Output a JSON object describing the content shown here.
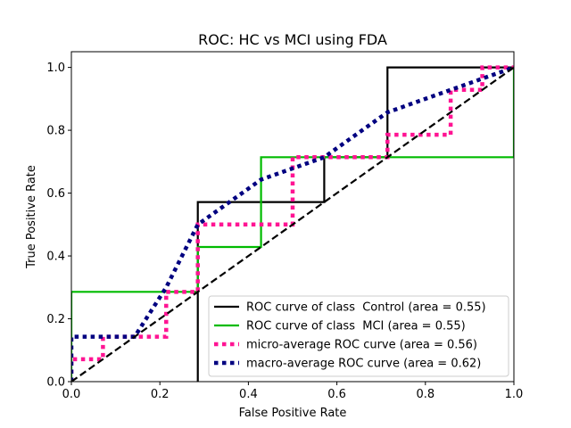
{
  "chart_data": {
    "type": "line",
    "title": "ROC: HC vs MCI using FDA",
    "xlabel": "False Positive Rate",
    "ylabel": "True Positive Rate",
    "xlim": [
      0.0,
      1.0
    ],
    "ylim": [
      0.0,
      1.05
    ],
    "xticks": [
      0.0,
      0.2,
      0.4,
      0.6,
      0.8,
      1.0
    ],
    "yticks": [
      0.0,
      0.2,
      0.4,
      0.6,
      0.8,
      1.0
    ],
    "xtick_labels": [
      "0.0",
      "0.2",
      "0.4",
      "0.6",
      "0.8",
      "1.0"
    ],
    "ytick_labels": [
      "0.0",
      "0.2",
      "0.4",
      "0.6",
      "0.8",
      "1.0"
    ],
    "grid": false,
    "legend_position": "lower-right",
    "series": [
      {
        "name": "ROC curve of class  Control (area = 0.55)",
        "color": "#000000",
        "style": "solid",
        "x": [
          0.2857,
          0.2857,
          0.2857,
          0.5714,
          0.5714,
          0.7143,
          0.7143,
          1.0
        ],
        "y": [
          0.0,
          0.0,
          0.5714,
          0.5714,
          0.7143,
          0.7143,
          1.0,
          1.0
        ]
      },
      {
        "name": "ROC curve of class  MCI (area = 0.55)",
        "color": "#00bb00",
        "style": "solid",
        "x": [
          0.0,
          0.0,
          0.2857,
          0.2857,
          0.4286,
          0.4286,
          1.0,
          1.0
        ],
        "y": [
          0.0,
          0.2857,
          0.2857,
          0.4286,
          0.4286,
          0.7143,
          0.7143,
          1.0
        ]
      },
      {
        "name": "micro-average ROC curve (area = 0.56)",
        "color": "#ff1493",
        "style": "dotted",
        "x": [
          0.0,
          0.0,
          0.0714,
          0.0714,
          0.2143,
          0.2143,
          0.2857,
          0.2857,
          0.5,
          0.5,
          0.7143,
          0.7143,
          0.8571,
          0.8571,
          0.9286,
          0.9286,
          1.0
        ],
        "y": [
          0.0,
          0.0714,
          0.0714,
          0.1429,
          0.1429,
          0.2857,
          0.2857,
          0.5,
          0.5,
          0.7143,
          0.7143,
          0.7857,
          0.7857,
          0.9286,
          0.9286,
          1.0,
          1.0
        ]
      },
      {
        "name": "macro-average ROC curve (area = 0.62)",
        "color": "#000080",
        "style": "dotted",
        "x": [
          0.0,
          0.0,
          0.143,
          0.2143,
          0.2857,
          0.4286,
          0.5,
          0.5714,
          0.7143,
          0.8571,
          0.9286,
          1.0
        ],
        "y": [
          0.0,
          0.1429,
          0.1429,
          0.3,
          0.5,
          0.6429,
          0.6786,
          0.7143,
          0.8571,
          0.9286,
          0.9643,
          1.0
        ]
      },
      {
        "name": "chance",
        "color": "#000000",
        "style": "dashed",
        "x": [
          0.0,
          1.0
        ],
        "y": [
          0.0,
          1.0
        ]
      }
    ],
    "legend_entries": [
      "ROC curve of class  Control (area = 0.55)",
      "ROC curve of class  MCI (area = 0.55)",
      "micro-average ROC curve (area = 0.56)",
      "macro-average ROC curve (area = 0.62)"
    ]
  }
}
